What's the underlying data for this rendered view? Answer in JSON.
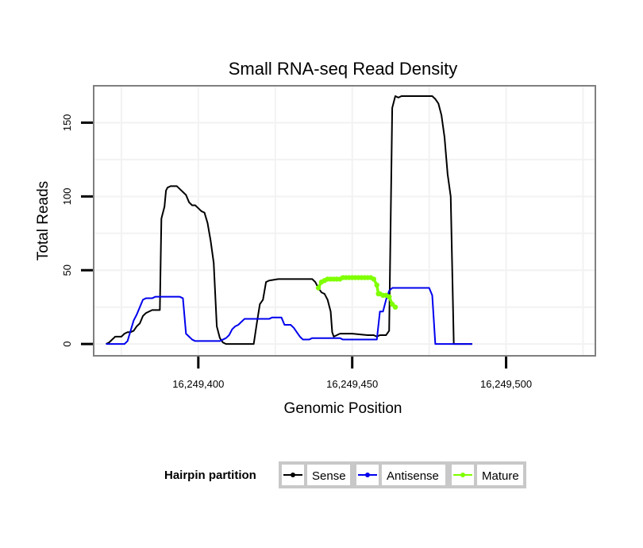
{
  "chart_data": {
    "type": "line",
    "title": "Small RNA-seq Read Density",
    "xlabel": "Genomic Position",
    "ylabel": "Total Reads",
    "xlim": [
      16249366,
      16249529
    ],
    "ylim": [
      -8,
      175
    ],
    "x_ticks": [
      16249400,
      16249450,
      16249500
    ],
    "x_tick_labels": [
      "16,249,400",
      "16,249,450",
      "16,249,500"
    ],
    "y_ticks": [
      0,
      50,
      100,
      150
    ],
    "y_tick_labels": [
      "0",
      "50",
      "100",
      "150"
    ],
    "grid": true,
    "legend": {
      "title": "Hairpin partition",
      "position": "bottom",
      "entries": [
        "Sense",
        "Antisense",
        "Mature"
      ]
    },
    "colors": {
      "Sense": "#000000",
      "Antisense": "#0000ee",
      "Mature": "#7fff00",
      "panel_border": "#7f7f7f",
      "grid": "#f2f2f2"
    },
    "series": [
      {
        "name": "Sense",
        "points": [
          [
            16249370,
            0
          ],
          [
            16249371,
            1
          ],
          [
            16249372,
            3
          ],
          [
            16249373,
            5
          ],
          [
            16249374,
            5
          ],
          [
            16249375,
            5
          ],
          [
            16249376,
            7
          ],
          [
            16249377,
            8
          ],
          [
            16249378,
            8
          ],
          [
            16249379,
            9
          ],
          [
            16249380,
            12
          ],
          [
            16249381,
            14
          ],
          [
            16249382,
            19
          ],
          [
            16249383,
            21
          ],
          [
            16249384,
            22
          ],
          [
            16249385,
            23
          ],
          [
            16249386,
            23
          ],
          [
            16249387,
            23
          ],
          [
            16249387.5,
            23
          ],
          [
            16249388,
            85
          ],
          [
            16249389,
            93
          ],
          [
            16249389.5,
            104
          ],
          [
            16249390,
            106
          ],
          [
            16249391,
            107
          ],
          [
            16249392,
            107
          ],
          [
            16249393,
            107
          ],
          [
            16249394,
            105
          ],
          [
            16249395,
            103
          ],
          [
            16249396,
            101
          ],
          [
            16249397,
            96
          ],
          [
            16249398,
            94
          ],
          [
            16249399,
            94
          ],
          [
            16249400,
            92
          ],
          [
            16249401,
            90
          ],
          [
            16249402,
            89
          ],
          [
            16249403,
            82
          ],
          [
            16249404,
            70
          ],
          [
            16249405,
            55
          ],
          [
            16249406,
            12
          ],
          [
            16249407,
            4
          ],
          [
            16249408,
            1
          ],
          [
            16249409,
            0
          ],
          [
            16249410,
            0
          ],
          [
            16249415,
            0
          ],
          [
            16249418,
            0
          ],
          [
            16249419,
            14
          ],
          [
            16249420,
            27
          ],
          [
            16249421,
            30
          ],
          [
            16249422,
            42
          ],
          [
            16249423,
            43
          ],
          [
            16249426,
            44
          ],
          [
            16249430,
            44
          ],
          [
            16249435,
            44
          ],
          [
            16249437,
            44
          ],
          [
            16249438,
            42
          ],
          [
            16249439,
            38
          ],
          [
            16249440,
            35
          ],
          [
            16249441,
            34
          ],
          [
            16249442,
            30
          ],
          [
            16249443,
            22
          ],
          [
            16249443.5,
            8
          ],
          [
            16249444,
            5
          ],
          [
            16249445,
            6
          ],
          [
            16249446,
            7
          ],
          [
            16249450,
            7
          ],
          [
            16249455,
            6
          ],
          [
            16249457,
            6
          ],
          [
            16249458,
            5
          ],
          [
            16249459,
            6
          ],
          [
            16249461,
            6
          ],
          [
            16249462,
            9
          ],
          [
            16249463,
            160
          ],
          [
            16249464,
            168
          ],
          [
            16249465,
            167
          ],
          [
            16249466,
            168
          ],
          [
            16249470,
            168
          ],
          [
            16249476,
            168
          ],
          [
            16249477,
            166
          ],
          [
            16249478,
            163
          ],
          [
            16249479,
            155
          ],
          [
            16249480,
            140
          ],
          [
            16249481,
            115
          ],
          [
            16249482,
            100
          ],
          [
            16249483,
            0
          ],
          [
            16249489,
            0
          ]
        ]
      },
      {
        "name": "Antisense",
        "points": [
          [
            16249370,
            0
          ],
          [
            16249376,
            0
          ],
          [
            16249377,
            2
          ],
          [
            16249378,
            9
          ],
          [
            16249379,
            16
          ],
          [
            16249380,
            20
          ],
          [
            16249381,
            25
          ],
          [
            16249382,
            30
          ],
          [
            16249383,
            31
          ],
          [
            16249385,
            31
          ],
          [
            16249386,
            32
          ],
          [
            16249394,
            32
          ],
          [
            16249395,
            31
          ],
          [
            16249396,
            7
          ],
          [
            16249397,
            5
          ],
          [
            16249398,
            3
          ],
          [
            16249399,
            2
          ],
          [
            16249400,
            2
          ],
          [
            16249407,
            2
          ],
          [
            16249408,
            3
          ],
          [
            16249409,
            4
          ],
          [
            16249410,
            6
          ],
          [
            16249411,
            10
          ],
          [
            16249412,
            12
          ],
          [
            16249413,
            13
          ],
          [
            16249414,
            15
          ],
          [
            16249415,
            17
          ],
          [
            16249423,
            17
          ],
          [
            16249424,
            18
          ],
          [
            16249427,
            18
          ],
          [
            16249428,
            13
          ],
          [
            16249430,
            13
          ],
          [
            16249431,
            11
          ],
          [
            16249432,
            8
          ],
          [
            16249433,
            5
          ],
          [
            16249434,
            3
          ],
          [
            16249436,
            3
          ],
          [
            16249437,
            4
          ],
          [
            16249446,
            4
          ],
          [
            16249447,
            3
          ],
          [
            16249458,
            3
          ],
          [
            16249459,
            22
          ],
          [
            16249460,
            22
          ],
          [
            16249461,
            30
          ],
          [
            16249462,
            36
          ],
          [
            16249463,
            38
          ],
          [
            16249475,
            38
          ],
          [
            16249476,
            33
          ],
          [
            16249477,
            0
          ],
          [
            16249489,
            0
          ]
        ]
      },
      {
        "name": "Mature",
        "points": [
          [
            16249439,
            38
          ],
          [
            16249440,
            42
          ],
          [
            16249441,
            43
          ],
          [
            16249442,
            44
          ],
          [
            16249443,
            44
          ],
          [
            16249444,
            44
          ],
          [
            16249445,
            44
          ],
          [
            16249446,
            44
          ],
          [
            16249447,
            45
          ],
          [
            16249448,
            45
          ],
          [
            16249449,
            45
          ],
          [
            16249450,
            45
          ],
          [
            16249451,
            45
          ],
          [
            16249452,
            45
          ],
          [
            16249453,
            45
          ],
          [
            16249454,
            45
          ],
          [
            16249455,
            45
          ],
          [
            16249456,
            45
          ],
          [
            16249457,
            44
          ],
          [
            16249458,
            40
          ],
          [
            16249458.5,
            34
          ],
          [
            16249459,
            34
          ],
          [
            16249460,
            33
          ],
          [
            16249461,
            33
          ],
          [
            16249462,
            32
          ],
          [
            16249463,
            27
          ],
          [
            16249464,
            25
          ]
        ]
      }
    ]
  }
}
